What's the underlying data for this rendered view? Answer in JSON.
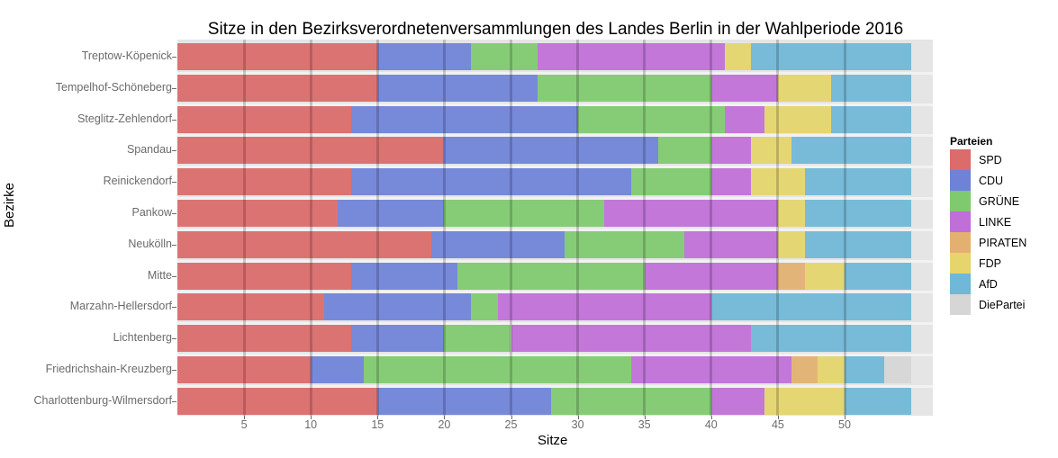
{
  "chart_data": {
    "type": "bar",
    "orientation": "horizontal",
    "stacked": true,
    "title": "Sitze in den Bezirksverordnetenversammlungen des Landes Berlin in der Wahlperiode 2016",
    "xlabel": "Sitze",
    "ylabel": "Bezirke",
    "xlim": [
      0,
      56
    ],
    "xticks": [
      5,
      10,
      15,
      20,
      25,
      30,
      35,
      40,
      45,
      50
    ],
    "grid": true,
    "legend": {
      "title": "Parteien",
      "position": "right"
    },
    "categories": [
      "Treptow-Köpenick",
      "Tempelhof-Schöneberg",
      "Steglitz-Zehlendorf",
      "Spandau",
      "Reinickendorf",
      "Pankow",
      "Neukölln",
      "Mitte",
      "Marzahn-Hellersdorf",
      "Lichtenberg",
      "Friedrichshain-Kreuzberg",
      "Charlottenburg-Wilmersdorf"
    ],
    "series": [
      {
        "name": "SPD",
        "color": "#dc6b6b",
        "values": [
          15,
          15,
          13,
          20,
          13,
          12,
          19,
          13,
          11,
          13,
          10,
          15
        ]
      },
      {
        "name": "CDU",
        "color": "#6f82d8",
        "values": [
          7,
          12,
          17,
          16,
          21,
          8,
          10,
          8,
          11,
          7,
          4,
          13
        ]
      },
      {
        "name": "GRÜNE",
        "color": "#7fca6e",
        "values": [
          5,
          13,
          11,
          4,
          6,
          12,
          9,
          14,
          2,
          5,
          20,
          12
        ]
      },
      {
        "name": "LINKE",
        "color": "#c06fd8",
        "values": [
          14,
          5,
          3,
          3,
          3,
          13,
          7,
          10,
          16,
          18,
          12,
          4
        ]
      },
      {
        "name": "PIRATEN",
        "color": "#e3b06f",
        "values": [
          0,
          0,
          0,
          0,
          0,
          0,
          0,
          2,
          0,
          0,
          2,
          0
        ]
      },
      {
        "name": "FDP",
        "color": "#e5d56c",
        "values": [
          2,
          4,
          5,
          3,
          4,
          2,
          2,
          3,
          0,
          0,
          2,
          6
        ]
      },
      {
        "name": "AfD",
        "color": "#6fb8d8",
        "values": [
          12,
          6,
          6,
          9,
          8,
          8,
          8,
          5,
          15,
          12,
          3,
          5
        ]
      },
      {
        "name": "DiePartei",
        "color": "#d6d6d6",
        "values": [
          0,
          0,
          0,
          0,
          0,
          0,
          0,
          0,
          0,
          0,
          2,
          0
        ]
      }
    ]
  }
}
